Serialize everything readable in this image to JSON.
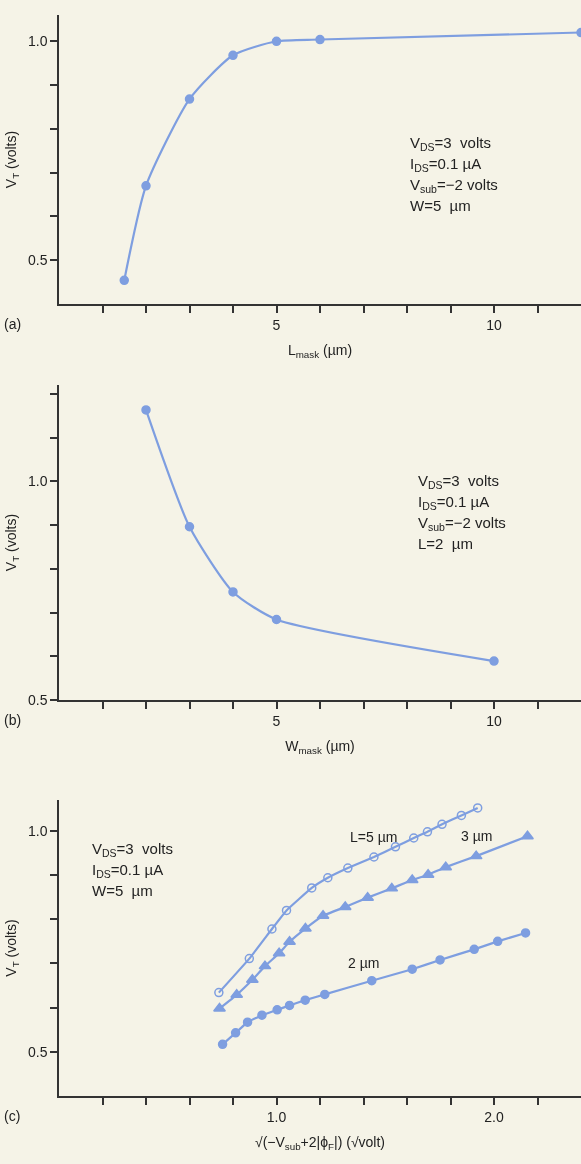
{
  "chart_data": [
    {
      "type": "line",
      "title": "(a)",
      "xlabel": "L$_{mask}$ (µm)",
      "ylabel": "V$_{T}$ (volts)",
      "marker": "circle",
      "line_style": "solid",
      "x": [
        1.5,
        2,
        3,
        4,
        5,
        6,
        12
      ],
      "series": [
        {
          "color": "#7e9ee0",
          "values": [
            0.454,
            0.67,
            0.868,
            0.968,
            1.0,
            1.004,
            1.02
          ]
        }
      ],
      "xlim": [
        0,
        12
      ],
      "xticks": [
        {
          "value": 1,
          "label": null
        },
        {
          "value": 2,
          "label": null
        },
        {
          "value": 3,
          "label": null
        },
        {
          "value": 4,
          "label": null
        },
        5,
        {
          "value": 6,
          "label": null
        },
        {
          "value": 7,
          "label": null
        },
        {
          "value": 8,
          "label": null
        },
        {
          "value": 9,
          "label": null
        },
        10,
        {
          "value": 11,
          "label": null
        }
      ],
      "ylim": [
        0.4,
        1.06
      ],
      "yticks": [
        {
          "value": 0.5,
          "label": "0.5"
        },
        {
          "value": 0.6,
          "label": null
        },
        {
          "value": 0.7,
          "label": null
        },
        {
          "value": 0.8,
          "label": null
        },
        {
          "value": 0.9,
          "label": null
        },
        {
          "value": 1.0,
          "label": "1.0"
        }
      ],
      "annotations": [
        "V$_{DS}$=3  volts",
        "I$_{DS}$=0.1 µA",
        "V$_{sub}$=−2 volts",
        "W=5  µm"
      ]
    },
    {
      "type": "line",
      "title": "(b)",
      "xlabel": "W$_{mask}$ (µm)",
      "ylabel": "V$_{T}$ (volts)",
      "marker": "circle",
      "line_style": "solid",
      "x": [
        2,
        3,
        4,
        5,
        10
      ],
      "series": [
        {
          "color": "#7e9ee0",
          "values": [
            1.163,
            0.896,
            0.747,
            0.684,
            0.589
          ]
        }
      ],
      "xlim": [
        0,
        12
      ],
      "xticks": [
        {
          "value": 1,
          "label": null
        },
        {
          "value": 2,
          "label": null
        },
        {
          "value": 3,
          "label": null
        },
        {
          "value": 4,
          "label": null
        },
        5,
        {
          "value": 6,
          "label": null
        },
        {
          "value": 7,
          "label": null
        },
        {
          "value": 8,
          "label": null
        },
        {
          "value": 9,
          "label": null
        },
        10,
        {
          "value": 11,
          "label": null
        }
      ],
      "ylim": [
        0.5,
        1.22
      ],
      "yticks": [
        {
          "value": 0.5,
          "label": "0.5"
        },
        {
          "value": 0.6,
          "label": null
        },
        {
          "value": 0.7,
          "label": null
        },
        {
          "value": 0.8,
          "label": null
        },
        {
          "value": 0.9,
          "label": null
        },
        {
          "value": 1.0,
          "label": "1.0"
        },
        {
          "value": 1.1,
          "label": null
        },
        {
          "value": 1.2,
          "label": null
        }
      ],
      "annotations": [
        "V$_{DS}$=3  volts",
        "I$_{DS}$=0.1 µA",
        "V$_{sub}$=−2 volts",
        "L=2  µm"
      ]
    },
    {
      "type": "line",
      "title": "(c)",
      "xlabel": "√(−V$_{sub}$+2|ϕ$_{F}$|) (√volt)",
      "ylabel": "V$_{T}$ (volts)",
      "line_style": "solid",
      "series": [
        {
          "name": "L=5 µm",
          "color": "#7e9ee0",
          "marker": "circle-open",
          "x": [
            0.735,
            0.875,
            0.979,
            1.046,
            1.162,
            1.236,
            1.328,
            1.448,
            1.547,
            1.631,
            1.694,
            1.761,
            1.85,
            1.925
          ],
          "values": [
            0.634,
            0.711,
            0.778,
            0.82,
            0.871,
            0.894,
            0.916,
            0.941,
            0.964,
            0.984,
            0.998,
            1.015,
            1.035,
            1.052
          ]
        },
        {
          "name": "3 µm",
          "color": "#7e9ee0",
          "marker": "triangle",
          "x": [
            0.738,
            0.817,
            0.889,
            0.947,
            1.012,
            1.06,
            1.133,
            1.214,
            1.316,
            1.419,
            1.53,
            1.624,
            1.697,
            1.778,
            1.918,
            2.154
          ],
          "values": [
            0.598,
            0.629,
            0.663,
            0.694,
            0.723,
            0.749,
            0.779,
            0.808,
            0.828,
            0.849,
            0.87,
            0.889,
            0.901,
            0.918,
            0.943,
            0.988
          ]
        },
        {
          "name": "2 µm",
          "color": "#7e9ee0",
          "marker": "circle",
          "x": [
            0.752,
            0.812,
            0.867,
            0.933,
            1.003,
            1.06,
            1.132,
            1.222,
            1.438,
            1.624,
            1.752,
            1.909,
            2.017,
            2.145
          ],
          "values": [
            0.517,
            0.543,
            0.567,
            0.583,
            0.595,
            0.605,
            0.617,
            0.63,
            0.661,
            0.687,
            0.708,
            0.732,
            0.75,
            0.769
          ]
        }
      ],
      "xlim": [
        0,
        2.4
      ],
      "xticks": [
        {
          "value": 0.2,
          "label": null
        },
        {
          "value": 0.4,
          "label": null
        },
        {
          "value": 0.6,
          "label": null
        },
        {
          "value": 0.8,
          "label": null
        },
        {
          "value": 1.0,
          "label": "1.0"
        },
        {
          "value": 1.2,
          "label": null
        },
        {
          "value": 1.4,
          "label": null
        },
        {
          "value": 1.6,
          "label": null
        },
        {
          "value": 1.8,
          "label": null
        },
        {
          "value": 2.0,
          "label": "2.0"
        },
        {
          "value": 2.2,
          "label": null
        }
      ],
      "ylim": [
        0.4,
        1.07
      ],
      "yticks": [
        {
          "value": 0.5,
          "label": "0.5"
        },
        {
          "value": 0.6,
          "label": null
        },
        {
          "value": 0.7,
          "label": null
        },
        {
          "value": 0.8,
          "label": null
        },
        {
          "value": 0.9,
          "label": null
        },
        {
          "value": 1.0,
          "label": "1.0"
        }
      ],
      "annotations": [
        "V$_{DS}$=3  volts",
        "I$_{DS}$=0.1 µA",
        "W=5  µm"
      ]
    }
  ]
}
